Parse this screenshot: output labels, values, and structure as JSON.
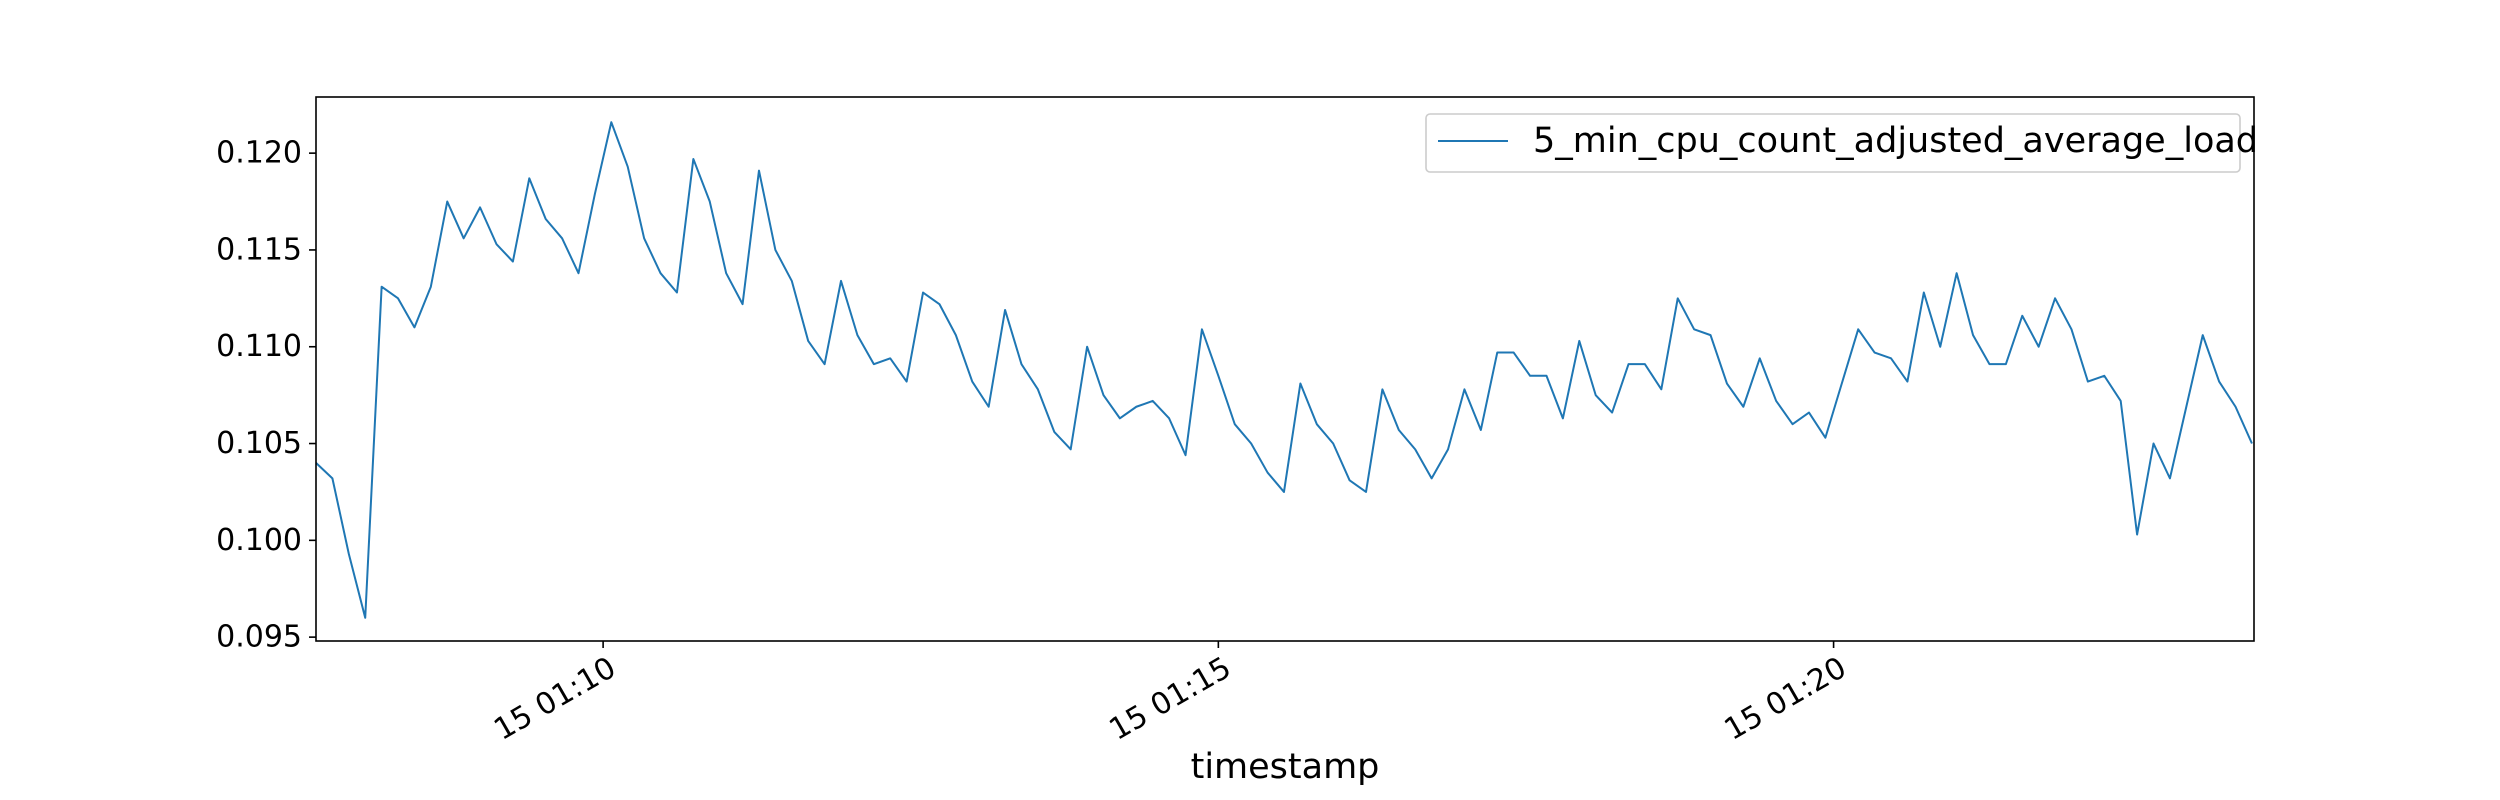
{
  "chart_data": {
    "type": "line",
    "title": "",
    "xlabel": "timestamp",
    "ylabel": "",
    "x_unit": "minutes",
    "xlim": [
      "01:07:40",
      "01:23:25"
    ],
    "ylim": [
      0.0948,
      0.1229
    ],
    "grid": false,
    "legend_position": "top-right",
    "x_ticks": [
      {
        "time": "01:10",
        "label": "15 01:10"
      },
      {
        "time": "01:15",
        "label": "15 01:15"
      },
      {
        "time": "01:20",
        "label": "15 01:20"
      }
    ],
    "y_ticks": [
      {
        "value": 0.095,
        "label": "0.095"
      },
      {
        "value": 0.1,
        "label": "0.100"
      },
      {
        "value": 0.105,
        "label": "0.105"
      },
      {
        "value": 0.11,
        "label": "0.110"
      },
      {
        "value": 0.115,
        "label": "0.115"
      },
      {
        "value": 0.12,
        "label": "0.120"
      }
    ],
    "series": [
      {
        "name": "5_min_cpu_count_adjusted_average_load",
        "color": "#1f77b4",
        "x": [
          "01:07:40",
          "01:07:48",
          "01:07:56",
          "01:08:04",
          "01:08:12",
          "01:08:20",
          "01:08:28",
          "01:08:36",
          "01:08:44",
          "01:08:52",
          "01:09:00",
          "01:09:08",
          "01:09:16",
          "01:09:24",
          "01:09:32",
          "01:09:40",
          "01:09:48",
          "01:09:56",
          "01:10:04",
          "01:10:12",
          "01:10:20",
          "01:10:28",
          "01:10:36",
          "01:10:44",
          "01:10:52",
          "01:11:00",
          "01:11:08",
          "01:11:16",
          "01:11:24",
          "01:11:32",
          "01:11:40",
          "01:11:48",
          "01:11:56",
          "01:12:04",
          "01:12:12",
          "01:12:20",
          "01:12:28",
          "01:12:36",
          "01:12:44",
          "01:12:52",
          "01:13:00",
          "01:13:08",
          "01:13:16",
          "01:13:24",
          "01:13:32",
          "01:13:40",
          "01:13:48",
          "01:13:56",
          "01:14:04",
          "01:14:12",
          "01:14:20",
          "01:14:28",
          "01:14:36",
          "01:14:44",
          "01:14:52",
          "01:15:00",
          "01:15:08",
          "01:15:16",
          "01:15:24",
          "01:15:32",
          "01:15:40",
          "01:15:48",
          "01:15:56",
          "01:16:04",
          "01:16:12",
          "01:16:20",
          "01:16:28",
          "01:16:36",
          "01:16:44",
          "01:16:52",
          "01:17:00",
          "01:17:08",
          "01:17:16",
          "01:17:24",
          "01:17:32",
          "01:17:40",
          "01:17:48",
          "01:17:56",
          "01:18:04",
          "01:18:12",
          "01:18:20",
          "01:18:28",
          "01:18:36",
          "01:18:44",
          "01:18:52",
          "01:19:00",
          "01:19:08",
          "01:19:16",
          "01:19:24",
          "01:19:32",
          "01:19:40",
          "01:19:48",
          "01:19:56",
          "01:20:04",
          "01:20:12",
          "01:20:20",
          "01:20:28",
          "01:20:36",
          "01:20:44",
          "01:20:52",
          "01:21:00",
          "01:21:08",
          "01:21:16",
          "01:21:24",
          "01:21:32",
          "01:21:40",
          "01:21:48",
          "01:21:56",
          "01:22:04",
          "01:22:12",
          "01:22:20",
          "01:22:28",
          "01:22:36",
          "01:22:44",
          "01:22:52",
          "01:23:00",
          "01:23:08",
          "01:23:16",
          "01:23:24"
        ],
        "y": [
          0.104,
          0.1032,
          0.0993,
          0.096,
          0.1131,
          0.1125,
          0.111,
          0.1131,
          0.1175,
          0.1156,
          0.1172,
          0.1153,
          0.1144,
          0.1187,
          0.1166,
          0.1156,
          0.1138,
          0.1179,
          0.1216,
          0.1193,
          0.1156,
          0.1138,
          0.1128,
          0.1197,
          0.1175,
          0.1138,
          0.1122,
          0.1191,
          0.115,
          0.1134,
          0.1103,
          0.1091,
          0.1134,
          0.1106,
          0.1091,
          0.1094,
          0.1082,
          0.1128,
          0.1122,
          0.1106,
          0.1082,
          0.1069,
          0.1119,
          0.1091,
          0.1078,
          0.1056,
          0.1047,
          0.11,
          0.1075,
          0.1063,
          0.1069,
          0.1072,
          0.1063,
          0.1044,
          0.1109,
          0.1085,
          0.106,
          0.105,
          0.1035,
          0.1025,
          0.1081,
          0.106,
          0.105,
          0.1031,
          0.1025,
          0.1078,
          0.1057,
          0.1047,
          0.1032,
          0.1047,
          0.1078,
          0.1057,
          0.1097,
          0.1097,
          0.1085,
          0.1085,
          0.1063,
          0.1103,
          0.1075,
          0.1066,
          0.1091,
          0.1091,
          0.1078,
          0.1125,
          0.1109,
          0.1106,
          0.1081,
          0.1069,
          0.1094,
          0.1072,
          0.106,
          0.1066,
          0.1053,
          0.1081,
          0.1109,
          0.1097,
          0.1094,
          0.1082,
          0.1128,
          0.11,
          0.1138,
          0.1106,
          0.1091,
          0.1091,
          0.1116,
          0.11,
          0.1125,
          0.1109,
          0.1082,
          0.1085,
          0.1072,
          0.1003,
          0.105,
          0.1032,
          0.1069,
          0.1106,
          0.1082,
          0.1069,
          0.105
        ]
      }
    ]
  }
}
